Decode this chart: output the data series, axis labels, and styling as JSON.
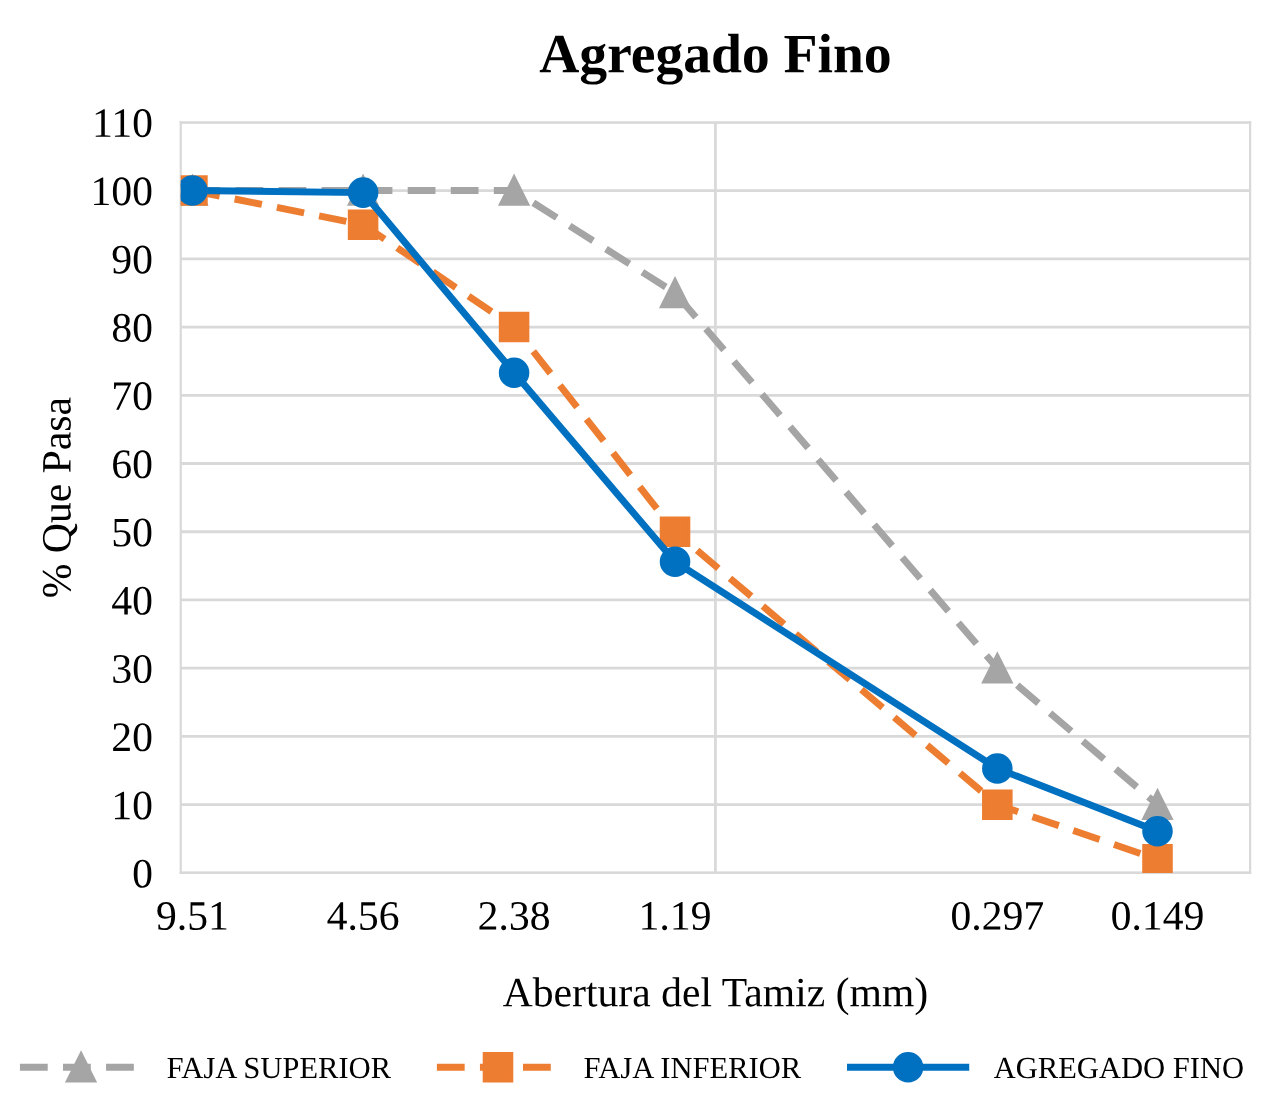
{
  "chart_data": {
    "type": "line",
    "title": "Agregado Fino",
    "xlabel": "Abertura del Tamiz (mm)",
    "ylabel": "% Que Pasa",
    "log": "x",
    "xlim": [
      10,
      0.1
    ],
    "ylim": [
      0,
      110
    ],
    "xticks": [
      9.51,
      4.56,
      2.38,
      1.19,
      0.297,
      0.149
    ],
    "yticks": [
      0,
      10,
      20,
      30,
      40,
      50,
      60,
      70,
      80,
      90,
      100,
      110
    ],
    "x": [
      9.51,
      4.56,
      2.38,
      1.19,
      0.297,
      0.149
    ],
    "grid": "y",
    "legend": "bottom",
    "ref_lines": [
      {
        "axis": "x",
        "value": 1,
        "color": "#d9d9d9"
      }
    ],
    "series": [
      {
        "name": "FAJA SUPERIOR",
        "color": "#a5a5a5",
        "marker": "triangle",
        "line_style": "dashed",
        "values": [
          100,
          100,
          100,
          85,
          30,
          10
        ]
      },
      {
        "name": "FAJA INFERIOR",
        "color": "#ed7d31",
        "marker": "square",
        "line_style": "dashed",
        "values": [
          100,
          95,
          80,
          50,
          10,
          2
        ]
      },
      {
        "name": "AGREGADO FINO",
        "color": "#0070c0",
        "marker": "circle",
        "line_style": "solid",
        "values": [
          100,
          99.7,
          73.3,
          45.6,
          15.3,
          6.1
        ]
      }
    ]
  }
}
